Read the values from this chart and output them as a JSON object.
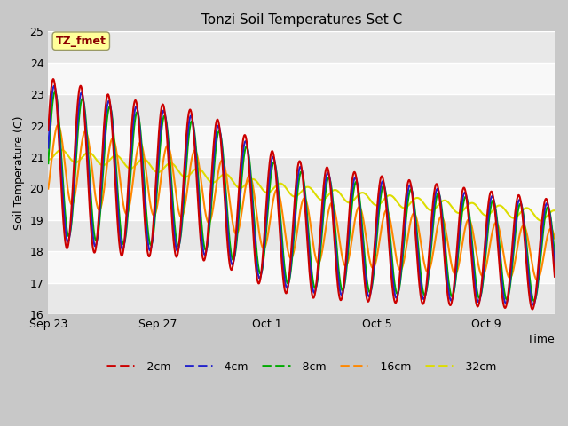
{
  "title": "Tonzi Soil Temperatures Set C",
  "ylabel": "Soil Temperature (C)",
  "xlabel": "Time",
  "annotation": "TZ_fmet",
  "ylim": [
    16.0,
    25.0
  ],
  "yticks": [
    16.0,
    17.0,
    18.0,
    19.0,
    20.0,
    21.0,
    22.0,
    23.0,
    24.0,
    25.0
  ],
  "fig_bg_color": "#c8c8c8",
  "plot_bg_color": "#ffffff",
  "grid_colors": [
    "#ffffff",
    "#e0e0e0"
  ],
  "colors": {
    "-2cm": "#cc0000",
    "-4cm": "#2222cc",
    "-8cm": "#00aa00",
    "-16cm": "#ff8800",
    "-32cm": "#dddd00"
  },
  "line_width": 1.5,
  "xtick_labels": [
    "Sep 23",
    "Sep 27",
    "Oct 1",
    "Oct 5",
    "Oct 9"
  ],
  "xtick_positions": [
    0,
    4,
    8,
    12,
    16
  ],
  "xlim": [
    0,
    18.5
  ]
}
